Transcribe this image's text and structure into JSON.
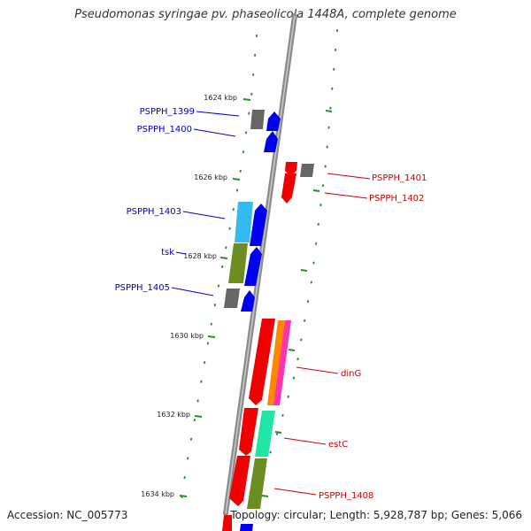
{
  "title": "Pseudomonas syringae pv. phaseolicola 1448A, complete genome",
  "accession_text": "Accession: NC_005773",
  "stats_text": "Topology: circular; Length: 5,928,787 bp; Genes: 5,066",
  "kbp_ticks": [
    "1624 kbp",
    "1626 kbp",
    "1628 kbp",
    "1630 kbp",
    "1632 kbp",
    "1634 kbp"
  ],
  "genes_left": [
    {
      "label": "PSPPH_1399",
      "color": "#0000cc"
    },
    {
      "label": "PSPPH_1400",
      "color": "#0000cc"
    },
    {
      "label": "PSPPH_1403",
      "color": "#0000cc"
    },
    {
      "label": "tsk",
      "color": "#0000cc"
    },
    {
      "label": "PSPPH_1405",
      "color": "#0000cc"
    }
  ],
  "genes_right": [
    {
      "label": "PSPPH_1401",
      "color": "#cc0000"
    },
    {
      "label": "PSPPH_1402",
      "color": "#cc0000"
    },
    {
      "label": "dinG",
      "color": "#cc0000"
    },
    {
      "label": "estC",
      "color": "#cc0000"
    },
    {
      "label": "PSPPH_1408",
      "color": "#cc0000"
    }
  ],
  "colors": {
    "backbone": "#8c8c8c",
    "dots": "#2d8a2d",
    "forward": "#0000ee",
    "reverse": "#ee0000",
    "pseudogene": "#666666",
    "cyan": "#33bbee",
    "olive": "#6b8e23",
    "orange": "#ff8800",
    "pink": "#ff33aa",
    "teal": "#22e5a5"
  }
}
